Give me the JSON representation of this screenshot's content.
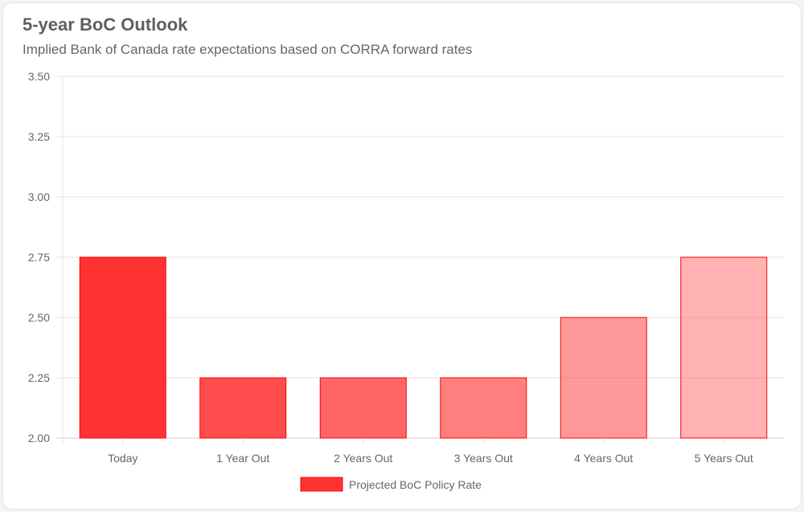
{
  "header": {
    "title": "5-year BoC Outlook",
    "subtitle": "Implied Bank of Canada rate expectations based on CORRA forward rates"
  },
  "chart_data": {
    "type": "bar",
    "title": "5-year BoC Outlook",
    "subtitle": "Implied Bank of Canada rate expectations based on CORRA forward rates",
    "categories": [
      "Today",
      "1 Year Out",
      "2 Years Out",
      "3 Years Out",
      "4 Years Out",
      "5 Years Out"
    ],
    "series": [
      {
        "name": "Projected BoC Policy Rate",
        "values": [
          2.75,
          2.25,
          2.25,
          2.25,
          2.5,
          2.75
        ]
      }
    ],
    "ylim": [
      2.0,
      3.5
    ],
    "yticks": [
      "2.00",
      "2.25",
      "2.50",
      "2.75",
      "3.00",
      "3.25",
      "3.50"
    ],
    "xlabel": "",
    "ylabel": "",
    "grid": true,
    "legend_position": "bottom",
    "bar_color": "#ff0000",
    "bar_opacities": [
      0.8,
      0.7,
      0.6,
      0.5,
      0.4,
      0.3
    ]
  }
}
